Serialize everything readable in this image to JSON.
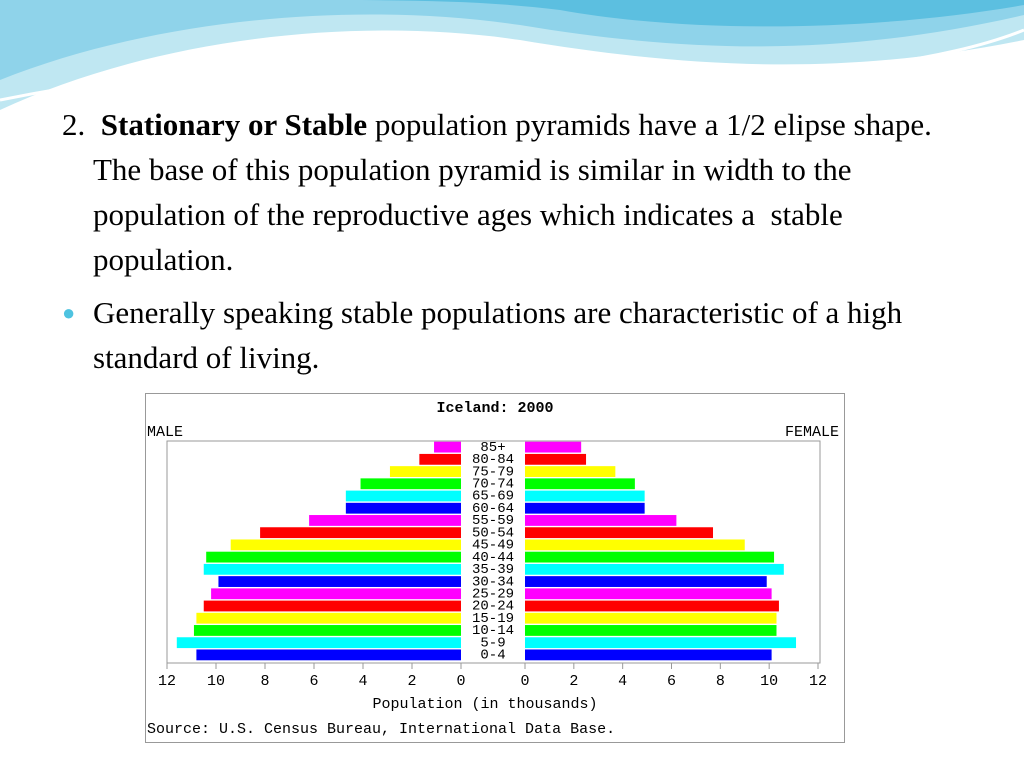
{
  "slide": {
    "items": [
      {
        "number": "2.",
        "bold": "Stationary or Stable",
        "text": "population pyramids have a 1/2 elipse shape.  The base of this population pyramid is similar in width to the population of the reproductive ages which indicates a  stable population."
      },
      {
        "text": "Generally speaking stable populations are characteristic of a high standard of living."
      }
    ]
  },
  "chart_data": {
    "type": "pyramid",
    "title": "Iceland: 2000",
    "left_label": "MALE",
    "right_label": "FEMALE",
    "xlabel": "Population (in thousands)",
    "source": "Source: U.S. Census Bureau, International Data Base.",
    "categories": [
      "0-4",
      "5-9",
      "10-14",
      "15-19",
      "20-24",
      "25-29",
      "30-34",
      "35-39",
      "40-44",
      "45-49",
      "50-54",
      "55-59",
      "60-64",
      "65-69",
      "70-74",
      "75-79",
      "80-84",
      "85+"
    ],
    "series": [
      {
        "name": "MALE",
        "values": [
          10.8,
          11.6,
          10.9,
          10.8,
          10.5,
          10.2,
          9.9,
          10.5,
          10.4,
          9.4,
          8.2,
          6.2,
          4.7,
          4.7,
          4.1,
          2.9,
          1.7,
          1.1
        ]
      },
      {
        "name": "FEMALE",
        "values": [
          10.1,
          11.1,
          10.3,
          10.3,
          10.4,
          10.1,
          9.9,
          10.6,
          10.2,
          9.0,
          7.7,
          6.2,
          4.9,
          4.9,
          4.5,
          3.7,
          2.5,
          2.3
        ]
      }
    ],
    "colors": [
      "#0000ff",
      "#00ffff",
      "#00ff00",
      "#ffff00",
      "#ff0000",
      "#ff00ff"
    ],
    "xlim": [
      0,
      12
    ],
    "xticks": [
      0,
      2,
      4,
      6,
      8,
      10,
      12
    ]
  }
}
